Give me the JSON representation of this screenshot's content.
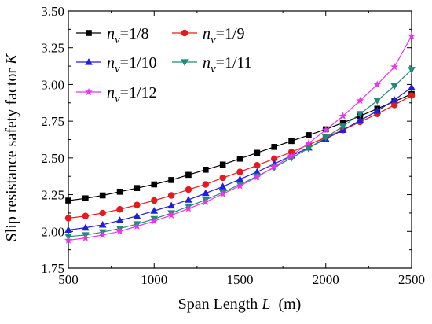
{
  "chart_data": {
    "type": "line",
    "xlabel": {
      "main": "Span Length ",
      "var": "L",
      "unit": "(m)"
    },
    "ylabel": {
      "main": "Slip resistance safety factor ",
      "var": "K"
    },
    "xlim": [
      500,
      2500
    ],
    "ylim": [
      1.75,
      3.5
    ],
    "xticks": [
      500,
      1000,
      1500,
      2000,
      2500
    ],
    "yticks": [
      1.75,
      2.0,
      2.25,
      2.5,
      2.75,
      3.0,
      3.25,
      3.5
    ],
    "xtick_labels": [
      "500",
      "1000",
      "1500",
      "2000",
      "2500"
    ],
    "ytick_labels": [
      "1.75",
      "2.00",
      "2.25",
      "2.50",
      "2.75",
      "3.00",
      "3.25",
      "3.50"
    ],
    "x": [
      500,
      600,
      700,
      800,
      900,
      1000,
      1100,
      1200,
      1300,
      1400,
      1500,
      1600,
      1700,
      1800,
      1900,
      2000,
      2100,
      2200,
      2300,
      2400,
      2500
    ],
    "grid": false,
    "legend_position": "top-left",
    "series": [
      {
        "name_var": "n",
        "name_sub": "v",
        "name_value": "=1/8",
        "color": "#000000",
        "marker": "square",
        "values": [
          2.21,
          2.225,
          2.245,
          2.27,
          2.295,
          2.32,
          2.35,
          2.385,
          2.42,
          2.455,
          2.495,
          2.535,
          2.575,
          2.615,
          2.655,
          2.695,
          2.74,
          2.785,
          2.835,
          2.885,
          2.935
        ]
      },
      {
        "name_var": "n",
        "name_sub": "v",
        "name_value": "=1/9",
        "color": "#e8191c",
        "marker": "circle",
        "values": [
          2.09,
          2.105,
          2.125,
          2.15,
          2.18,
          2.21,
          2.245,
          2.285,
          2.32,
          2.365,
          2.405,
          2.45,
          2.495,
          2.54,
          2.59,
          2.64,
          2.69,
          2.745,
          2.8,
          2.86,
          2.925
        ]
      },
      {
        "name_var": "n",
        "name_sub": "v",
        "name_value": "=1/10",
        "color": "#1f1fdd",
        "marker": "triangle-up",
        "values": [
          2.01,
          2.025,
          2.045,
          2.075,
          2.105,
          2.14,
          2.175,
          2.215,
          2.26,
          2.305,
          2.355,
          2.405,
          2.46,
          2.515,
          2.57,
          2.63,
          2.69,
          2.755,
          2.82,
          2.895,
          2.98
        ]
      },
      {
        "name_var": "n",
        "name_sub": "v",
        "name_value": "=1/11",
        "color": "#1e8a78",
        "marker": "triangle-down",
        "values": [
          1.965,
          1.975,
          1.995,
          2.02,
          2.05,
          2.085,
          2.125,
          2.17,
          2.215,
          2.265,
          2.32,
          2.375,
          2.435,
          2.5,
          2.565,
          2.64,
          2.715,
          2.8,
          2.89,
          2.99,
          3.1
        ]
      },
      {
        "name_var": "n",
        "name_sub": "v",
        "name_value": "=1/12",
        "color": "#ee33ee",
        "marker": "star",
        "values": [
          1.94,
          1.955,
          1.975,
          2.0,
          2.035,
          2.07,
          2.11,
          2.155,
          2.2,
          2.255,
          2.31,
          2.37,
          2.44,
          2.515,
          2.6,
          2.69,
          2.785,
          2.89,
          3.0,
          3.12,
          3.33
        ]
      }
    ]
  }
}
